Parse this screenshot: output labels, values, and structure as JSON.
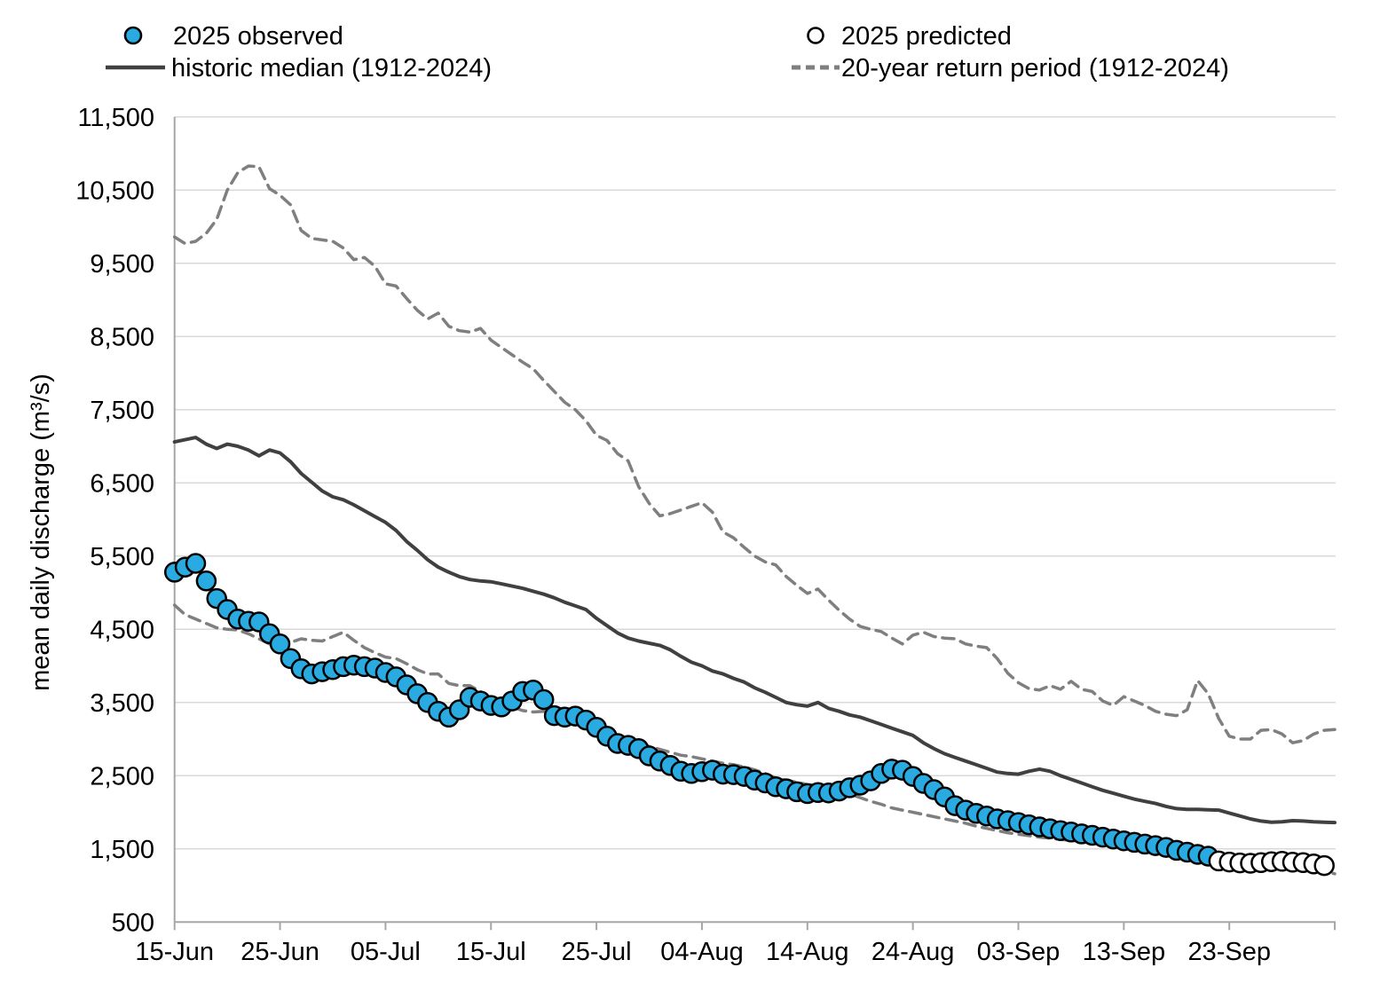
{
  "legend": {
    "observed_label": "2025 observed",
    "predicted_label": "2025 predicted",
    "median_label": "historic median (1912-2024)",
    "return_label": "20-year return period (1912-2024)"
  },
  "colors": {
    "observed_fill": "#29ABE2",
    "predicted_fill": "#FFFFFF",
    "marker_stroke": "#000000",
    "median_line": "#404040",
    "return_line": "#7F7F7F",
    "gridline": "#D9D9D9",
    "axis_line": "#A6A6A6",
    "text": "#000000"
  },
  "chart_data": {
    "type": "line",
    "title": "",
    "xlabel": "",
    "ylabel": "mean daily discharge (m³/s)",
    "ylim": [
      500,
      11500
    ],
    "y_tick_step": 1000,
    "y_tick_values": [
      500,
      1500,
      2500,
      3500,
      4500,
      5500,
      6500,
      7500,
      8500,
      9500,
      10500,
      11500
    ],
    "y_tick_labels": [
      "500",
      "1,500",
      "2,500",
      "3,500",
      "4,500",
      "5,500",
      "6,500",
      "7,500",
      "8,500",
      "9,500",
      "10,500",
      "11,500"
    ],
    "x_tick_labels": [
      "15-Jun",
      "25-Jun",
      "05-Jul",
      "15-Jul",
      "25-Jul",
      "04-Aug",
      "14-Aug",
      "24-Aug",
      "03-Sep",
      "13-Sep",
      "23-Sep"
    ],
    "x_tick_interval_days": 10,
    "x_total_days": 110,
    "grid": "horizontal",
    "legend_position": "top",
    "series": [
      {
        "name": "2025 observed",
        "style": "scatter-filled",
        "start_day": 0,
        "values": [
          5280,
          5350,
          5400,
          5160,
          4920,
          4770,
          4640,
          4610,
          4600,
          4440,
          4300,
          4100,
          3960,
          3890,
          3920,
          3950,
          3990,
          4010,
          3990,
          3970,
          3910,
          3850,
          3740,
          3620,
          3500,
          3380,
          3300,
          3400,
          3570,
          3520,
          3460,
          3440,
          3520,
          3650,
          3670,
          3540,
          3320,
          3300,
          3315,
          3260,
          3160,
          3040,
          2940,
          2915,
          2870,
          2770,
          2700,
          2640,
          2560,
          2530,
          2555,
          2575,
          2520,
          2515,
          2490,
          2440,
          2400,
          2350,
          2320,
          2280,
          2255,
          2270,
          2265,
          2290,
          2335,
          2370,
          2430,
          2530,
          2590,
          2575,
          2490,
          2395,
          2310,
          2210,
          2090,
          2030,
          1985,
          1950,
          1910,
          1885,
          1860,
          1830,
          1800,
          1775,
          1750,
          1730,
          1705,
          1685,
          1660,
          1635,
          1610,
          1590,
          1565,
          1545,
          1520,
          1480,
          1455,
          1425,
          1400
        ]
      },
      {
        "name": "2025 predicted",
        "style": "scatter-open",
        "start_day": 99,
        "values": [
          1335,
          1320,
          1308,
          1304,
          1312,
          1326,
          1330,
          1318,
          1312,
          1294,
          1272
        ]
      },
      {
        "name": "historic median (1912-2024)",
        "style": "line-solid",
        "start_day": 0,
        "values": [
          7060,
          7090,
          7120,
          7030,
          6970,
          7030,
          7000,
          6950,
          6870,
          6950,
          6910,
          6790,
          6630,
          6510,
          6390,
          6310,
          6270,
          6200,
          6120,
          6040,
          5960,
          5850,
          5700,
          5580,
          5450,
          5350,
          5280,
          5220,
          5180,
          5160,
          5150,
          5120,
          5090,
          5060,
          5020,
          4980,
          4930,
          4870,
          4820,
          4770,
          4650,
          4550,
          4450,
          4380,
          4340,
          4310,
          4280,
          4220,
          4130,
          4050,
          4000,
          3930,
          3890,
          3830,
          3780,
          3700,
          3640,
          3570,
          3500,
          3470,
          3450,
          3500,
          3420,
          3380,
          3330,
          3300,
          3250,
          3200,
          3150,
          3100,
          3050,
          2950,
          2870,
          2800,
          2750,
          2700,
          2650,
          2600,
          2550,
          2530,
          2520,
          2560,
          2590,
          2560,
          2500,
          2450,
          2400,
          2350,
          2300,
          2260,
          2220,
          2180,
          2150,
          2120,
          2080,
          2050,
          2040,
          2040,
          2035,
          2030,
          1990,
          1950,
          1910,
          1880,
          1865,
          1870,
          1885,
          1880,
          1870,
          1865,
          1860
        ]
      },
      {
        "name": "20-year return period (1912-2024)",
        "style": "line-dashed",
        "start_day": 0,
        "branches": [
          {
            "name": "20-year return period high",
            "values": [
              9860,
              9770,
              9800,
              9910,
              10100,
              10500,
              10740,
              10830,
              10820,
              10520,
              10430,
              10300,
              9950,
              9840,
              9820,
              9800,
              9710,
              9550,
              9580,
              9460,
              9220,
              9190,
              9020,
              8860,
              8740,
              8820,
              8640,
              8580,
              8560,
              8610,
              8450,
              8350,
              8250,
              8150,
              8060,
              7900,
              7750,
              7600,
              7500,
              7350,
              7150,
              7080,
              6900,
              6800,
              6450,
              6220,
              6050,
              6080,
              6130,
              6180,
              6230,
              6100,
              5830,
              5750,
              5620,
              5500,
              5420,
              5380,
              5220,
              5100,
              4990,
              5050,
              4900,
              4760,
              4640,
              4540,
              4500,
              4470,
              4380,
              4300,
              4420,
              4460,
              4400,
              4380,
              4370,
              4300,
              4270,
              4250,
              4100,
              3900,
              3770,
              3690,
              3670,
              3730,
              3680,
              3790,
              3680,
              3650,
              3520,
              3460,
              3580,
              3520,
              3460,
              3380,
              3340,
              3320,
              3400,
              3800,
              3620,
              3280,
              3040,
              3000,
              3000,
              3120,
              3130,
              3070,
              2950,
              2980,
              3070,
              3120,
              3130
            ]
          },
          {
            "name": "20-year return period low",
            "values": [
              4830,
              4700,
              4640,
              4580,
              4520,
              4500,
              4490,
              4440,
              4370,
              4300,
              4270,
              4320,
              4370,
              4350,
              4340,
              4400,
              4460,
              4350,
              4250,
              4180,
              4120,
              4100,
              4030,
              3950,
              3890,
              3890,
              3760,
              3730,
              3730,
              3650,
              3560,
              3500,
              3440,
              3390,
              3370,
              3380,
              3350,
              3300,
              3260,
              3210,
              3160,
              3100,
              3050,
              2990,
              2950,
              2900,
              2860,
              2820,
              2780,
              2760,
              2730,
              2700,
              2670,
              2650,
              2620,
              2580,
              2530,
              2470,
              2440,
              2410,
              2380,
              2360,
              2340,
              2300,
              2250,
              2200,
              2150,
              2110,
              2060,
              2030,
              2000,
              1970,
              1940,
              1910,
              1880,
              1850,
              1810,
              1780,
              1750,
              1720,
              1700,
              1680,
              1660,
              1645,
              1630,
              1615,
              1600,
              1585,
              1570,
              1555,
              1540,
              1525,
              1510,
              1495,
              1480,
              1465,
              1450,
              1435,
              1420,
              1405,
              1390,
              1370,
              1350,
              1330,
              1305,
              1285,
              1265,
              1245,
              1220,
              1195,
              1160
            ]
          }
        ]
      }
    ]
  }
}
